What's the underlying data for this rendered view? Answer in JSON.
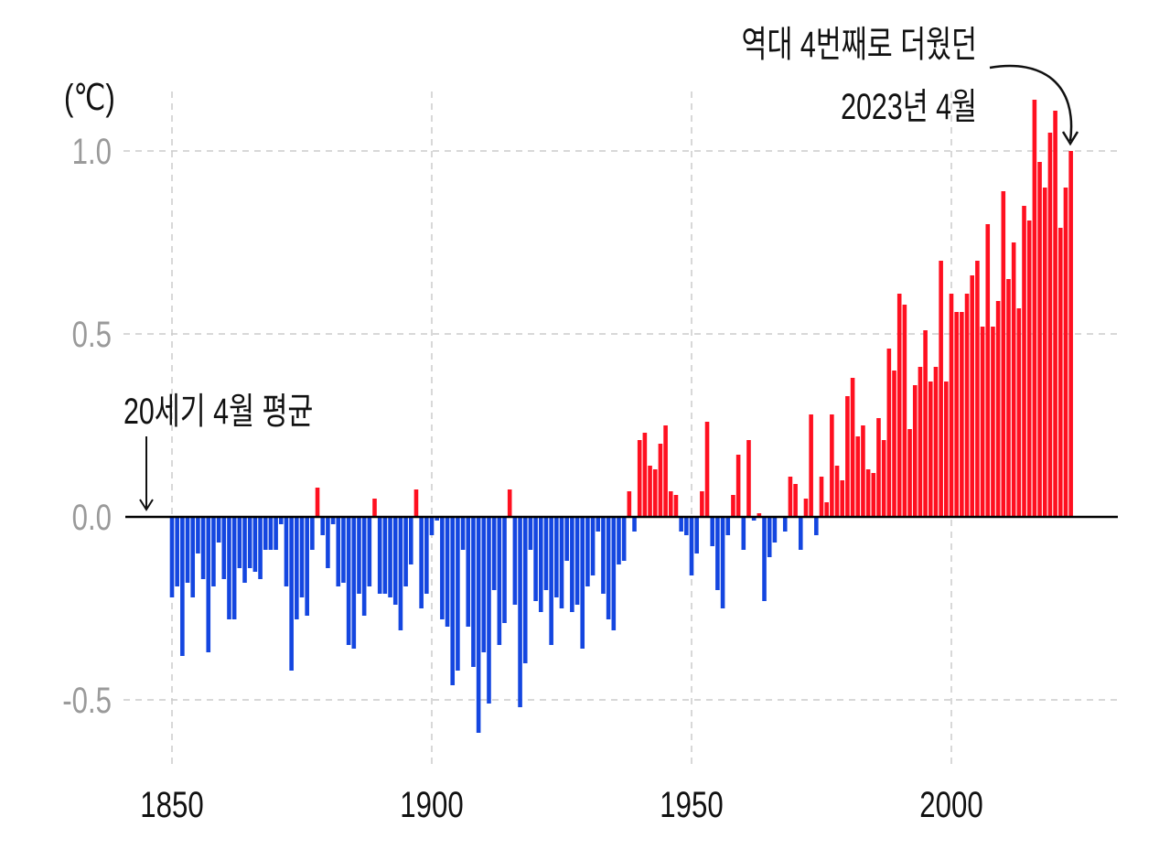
{
  "chart_data": {
    "type": "bar",
    "unit_label": "(℃)",
    "xlabel": "",
    "ylabel": "",
    "x_start": 1850,
    "x_end": 2023,
    "xlim": [
      1840,
      2030
    ],
    "ylim": [
      -0.62,
      1.2
    ],
    "x_ticks": [
      "1850",
      "1900",
      "1950",
      "2000"
    ],
    "y_ticks": [
      {
        "value": 1.0,
        "label": "1.0"
      },
      {
        "value": 0.5,
        "label": "0.5"
      },
      {
        "value": 0.0,
        "label": "0.0"
      },
      {
        "value": -0.5,
        "label": "-0.5"
      }
    ],
    "grid": true,
    "colors": {
      "positive": "#ff1020",
      "negative": "#1446e0",
      "grid": "#cccccc",
      "tick_y": "#9a9a9a"
    },
    "values": [
      -0.22,
      -0.19,
      -0.38,
      -0.18,
      -0.22,
      -0.1,
      -0.17,
      -0.37,
      -0.19,
      -0.07,
      -0.17,
      -0.28,
      -0.28,
      -0.14,
      -0.18,
      -0.14,
      -0.15,
      -0.17,
      -0.09,
      -0.09,
      -0.09,
      -0.02,
      -0.19,
      -0.42,
      -0.28,
      -0.22,
      -0.27,
      -0.09,
      0.08,
      -0.05,
      -0.14,
      -0.02,
      -0.19,
      -0.18,
      -0.35,
      -0.36,
      -0.21,
      -0.27,
      -0.19,
      0.05,
      -0.21,
      -0.21,
      -0.22,
      -0.24,
      -0.31,
      -0.19,
      -0.13,
      0.075,
      -0.25,
      -0.21,
      -0.05,
      -0.01,
      -0.28,
      -0.3,
      -0.46,
      -0.42,
      -0.09,
      -0.3,
      -0.41,
      -0.59,
      -0.37,
      -0.51,
      -0.2,
      -0.35,
      -0.29,
      0.075,
      -0.24,
      -0.52,
      -0.4,
      -0.09,
      -0.23,
      -0.26,
      -0.2,
      -0.35,
      -0.22,
      -0.25,
      -0.12,
      -0.26,
      -0.24,
      -0.36,
      -0.19,
      -0.16,
      -0.04,
      -0.21,
      -0.28,
      -0.31,
      -0.13,
      -0.12,
      0.07,
      -0.04,
      0.21,
      0.23,
      0.14,
      0.13,
      0.2,
      0.25,
      0.07,
      0.06,
      -0.04,
      -0.05,
      -0.16,
      -0.1,
      0.07,
      0.26,
      -0.08,
      -0.2,
      -0.25,
      -0.05,
      0.06,
      0.17,
      -0.09,
      0.21,
      -0.01,
      0.01,
      -0.23,
      -0.11,
      -0.07,
      0.0,
      -0.04,
      0.11,
      0.09,
      -0.09,
      0.05,
      0.28,
      -0.05,
      0.11,
      0.04,
      0.28,
      0.14,
      0.1,
      0.33,
      0.38,
      0.22,
      0.25,
      0.13,
      0.12,
      0.27,
      0.21,
      0.46,
      0.4,
      0.61,
      0.58,
      0.24,
      0.36,
      0.41,
      0.51,
      0.37,
      0.41,
      0.7,
      0.37,
      0.61,
      0.56,
      0.56,
      0.61,
      0.66,
      0.7,
      0.52,
      0.8,
      0.52,
      0.59,
      0.89,
      0.65,
      0.75,
      0.57,
      0.85,
      0.81,
      1.14,
      0.97,
      0.9,
      1.05,
      1.11,
      0.79,
      0.9,
      1.0
    ],
    "annotations": {
      "baseline": "20세기 4월 평균",
      "highlight_line1": "역대 4번째로 더웠던",
      "highlight_line2": "2023년 4월"
    }
  }
}
